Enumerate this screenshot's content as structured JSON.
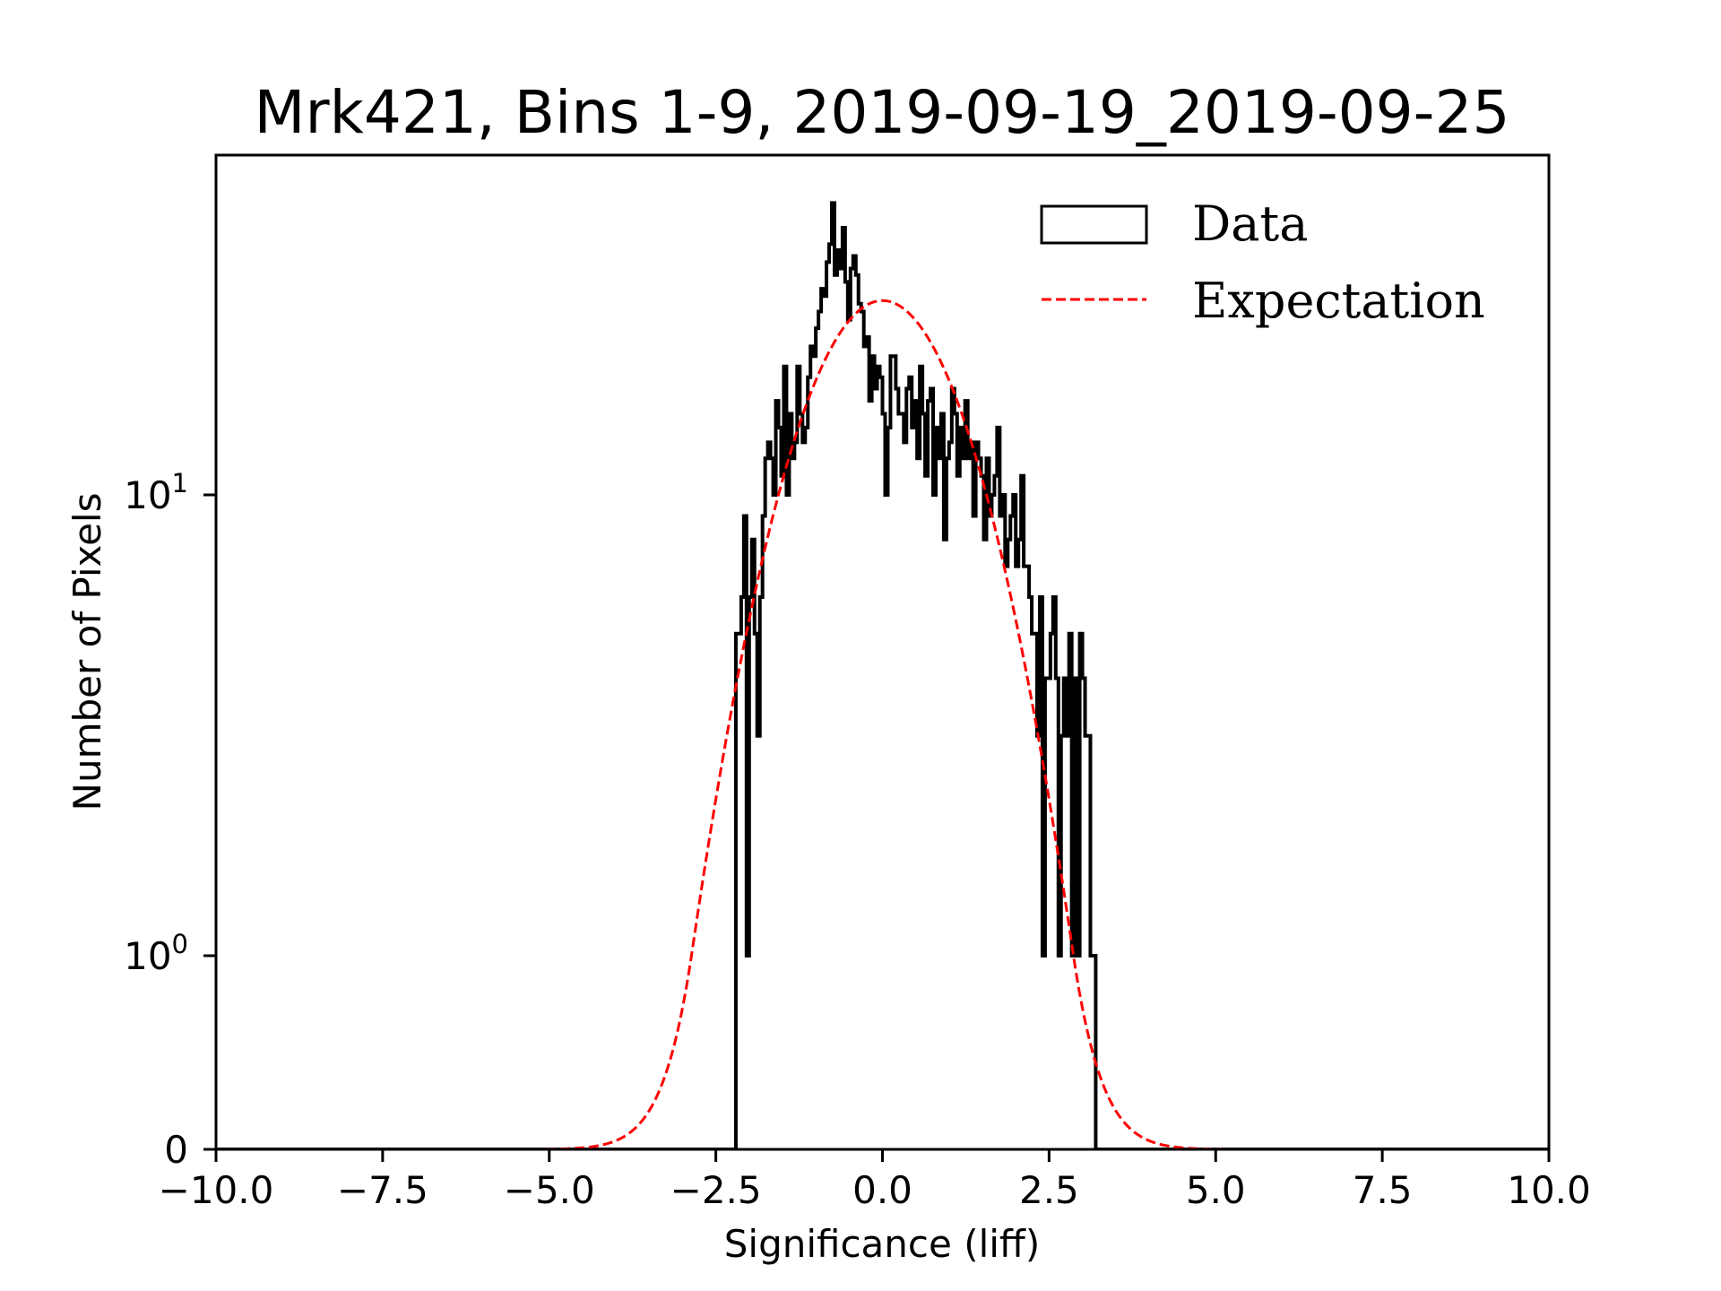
{
  "chart_data": {
    "type": "histogram",
    "title": "Mrk421, Bins 1-9, 2019-09-19_2019-09-25",
    "xlabel": "Significance (liff)",
    "ylabel": "Number of Pixels",
    "xlim": [
      -10.0,
      10.0
    ],
    "ylim": [
      0,
      54.6
    ],
    "yscale": "symlog",
    "ylinthresh": 1,
    "grid": false,
    "xticks": [
      {
        "value": -10.0,
        "label": "−10.0"
      },
      {
        "value": -7.5,
        "label": "−7.5"
      },
      {
        "value": -5.0,
        "label": "−5.0"
      },
      {
        "value": -2.5,
        "label": "−2.5"
      },
      {
        "value": 0.0,
        "label": "0.0"
      },
      {
        "value": 2.5,
        "label": "2.5"
      },
      {
        "value": 5.0,
        "label": "5.0"
      },
      {
        "value": 7.5,
        "label": "7.5"
      },
      {
        "value": 10.0,
        "label": "10.0"
      }
    ],
    "yticks": [
      {
        "value": 0,
        "base": "0",
        "exp": ""
      },
      {
        "value": 1,
        "base": "10",
        "exp": "0"
      },
      {
        "value": 10,
        "base": "10",
        "exp": "1"
      }
    ],
    "legend": {
      "placement": "top-right",
      "entries": [
        {
          "label": "Data",
          "style": "step-outline",
          "color": "#000000"
        },
        {
          "label": "Expectation",
          "style": "dashed-line",
          "color": "#ff0000"
        }
      ]
    },
    "series": [
      {
        "name": "Data",
        "kind": "step-histogram",
        "color": "#000000",
        "bin_start": -2.2,
        "bin_width": 0.04,
        "counts": [
          5,
          5,
          6,
          9,
          1,
          6,
          8,
          5,
          3,
          6,
          9,
          12,
          13,
          12,
          10,
          16,
          14,
          11,
          19,
          10,
          15,
          12,
          13,
          19,
          15,
          13,
          14,
          18,
          21,
          20,
          23,
          25,
          28,
          27,
          32,
          35,
          43,
          30,
          34,
          31,
          38,
          29,
          24,
          31,
          33,
          30,
          26,
          25,
          21,
          22,
          16,
          20,
          17,
          19,
          18,
          15,
          10,
          14,
          20,
          20,
          17,
          15,
          15,
          13,
          17,
          18,
          14,
          16,
          12,
          19,
          15,
          11,
          16,
          17,
          10,
          14,
          12,
          15,
          8,
          12,
          13,
          17,
          15,
          11,
          14,
          12,
          16,
          12,
          13,
          9,
          13,
          12,
          11,
          8,
          12,
          9,
          10,
          11,
          14,
          9,
          10,
          7,
          8,
          9,
          10,
          7,
          8,
          11,
          7,
          7,
          6,
          5,
          5,
          3,
          6,
          1,
          4,
          4,
          5,
          6,
          4,
          1,
          3,
          4,
          3,
          5,
          1,
          4,
          1,
          5,
          4,
          3,
          3,
          1,
          1
        ]
      },
      {
        "name": "Expectation",
        "kind": "gaussian-curve",
        "color": "#ff0000",
        "linestyle": "dashed",
        "amplitude": 26.4,
        "mean": 0.0,
        "sigma": 1.12
      }
    ]
  }
}
